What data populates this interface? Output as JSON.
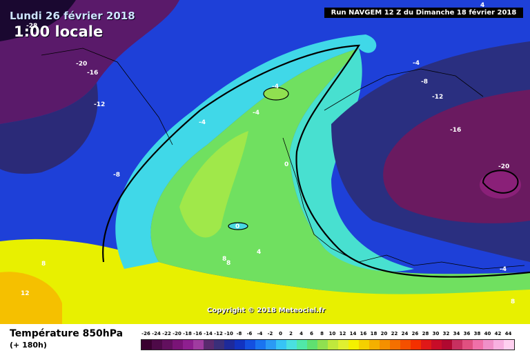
{
  "header": {
    "date": "Lundi 26 février 2018",
    "time": "1:00 locale",
    "run": "Run NAVGEM 12 Z du Dimanche 18 février 2018"
  },
  "copyright": "Copyright © 2018 Meteociel.fr",
  "footer": {
    "title": "Température 850hPa",
    "lead": "(+ 180h)"
  },
  "scale": {
    "labels": [
      "-26",
      "-24",
      "-22",
      "-20",
      "-18",
      "-16",
      "-14",
      "-12",
      "-10",
      "-8",
      "-6",
      "-4",
      "-2",
      "0",
      "2",
      "4",
      "6",
      "8",
      "10",
      "12",
      "14",
      "16",
      "18",
      "20",
      "22",
      "24",
      "26",
      "28",
      "30",
      "32",
      "34",
      "36",
      "38",
      "40",
      "42",
      "44"
    ],
    "colors": [
      "#3a0030",
      "#4e0a48",
      "#62105e",
      "#7a1477",
      "#8e1f8f",
      "#a03ca0",
      "#5a2a6e",
      "#3a2f7a",
      "#1e2a9a",
      "#1233c0",
      "#1450e0",
      "#1a74f0",
      "#2a9af5",
      "#37c4f5",
      "#4ae0e0",
      "#50e8a8",
      "#60e070",
      "#90e050",
      "#c0e83c",
      "#e0f030",
      "#f5f000",
      "#f5d000",
      "#f5b000",
      "#f59000",
      "#f57000",
      "#f55000",
      "#f53000",
      "#e01818",
      "#c80c28",
      "#b00830",
      "#c83060",
      "#e05080",
      "#f070a8",
      "#f090c8",
      "#f8b0e0",
      "#ffd0f0"
    ]
  },
  "contour_labels": [
    "-28",
    "-20",
    "-16",
    "-12",
    "-8",
    "-4",
    "-4",
    "-4",
    "-4",
    "-8",
    "-12",
    "-16",
    "-20",
    "-4",
    "0",
    "0",
    "4",
    "8",
    "8",
    "8",
    "12",
    "4",
    "8"
  ]
}
